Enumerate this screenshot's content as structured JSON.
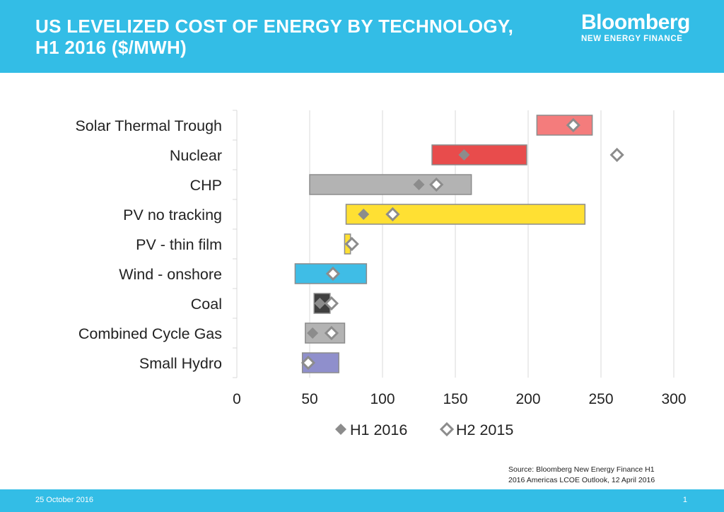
{
  "header": {
    "title_line1": "US LEVELIZED COST OF ENERGY BY TECHNOLOGY,",
    "title_line2": "H1 2016 ($/MWH)",
    "brand_name": "Bloomberg",
    "brand_sub": "NEW ENERGY FINANCE"
  },
  "source": {
    "line1": "Source: Bloomberg New Energy Finance H1",
    "line2": "2016 Americas LCOE Outlook, 12 April 2016"
  },
  "footer": {
    "date": "25 October 2016",
    "page": "1"
  },
  "colors": {
    "header_bg": "#33bde6",
    "axis": "#d9d9d9",
    "marker_fill": "#8c8c8c",
    "marker_stroke": "#8c8c8c"
  },
  "chart_data": {
    "type": "bar",
    "orientation": "horizontal-range",
    "title": "US LEVELIZED COST OF ENERGY BY TECHNOLOGY, H1 2016 ($/MWH)",
    "xlabel": "",
    "ylabel": "",
    "xlim": [
      0,
      300
    ],
    "xticks": [
      0,
      50,
      100,
      150,
      200,
      250,
      300
    ],
    "grid": "vertical",
    "legend_position": "bottom",
    "categories": [
      "Solar Thermal Trough",
      "Nuclear",
      "CHP",
      "PV no tracking",
      "PV - thin film",
      "Wind - onshore",
      "Coal",
      "Combined Cycle Gas",
      "Small Hydro"
    ],
    "ranges": [
      {
        "low": 206,
        "high": 244,
        "color": "#f47c7c"
      },
      {
        "low": 134,
        "high": 199,
        "color": "#e84c4c"
      },
      {
        "low": 50,
        "high": 161,
        "color": "#b3b3b3"
      },
      {
        "low": 75,
        "high": 239,
        "color": "#ffe033"
      },
      {
        "low": 74,
        "high": 78,
        "color": "#ffe033"
      },
      {
        "low": 40,
        "high": 89,
        "color": "#3fbde6"
      },
      {
        "low": 53,
        "high": 64,
        "color": "#404040"
      },
      {
        "low": 47,
        "high": 74,
        "color": "#b3b3b3"
      },
      {
        "low": 45,
        "high": 70,
        "color": "#8f8fcc"
      }
    ],
    "series": [
      {
        "name": "H1 2016",
        "marker": "filled-diamond",
        "values": [
          null,
          156,
          125,
          87,
          null,
          null,
          57,
          52,
          null
        ]
      },
      {
        "name": "H2 2015",
        "marker": "open-diamond",
        "values": [
          231,
          261,
          137,
          107,
          79,
          66,
          65,
          65,
          49
        ]
      }
    ]
  }
}
